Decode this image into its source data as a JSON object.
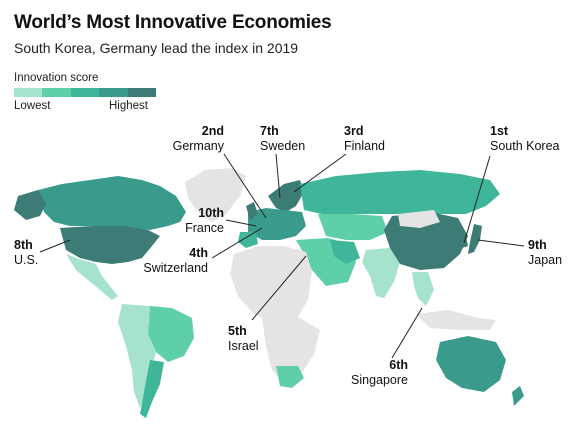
{
  "title": "World’s Most Innovative Economies",
  "subtitle": "South Korea, Germany lead the index in 2019",
  "legend": {
    "title": "Innovation score",
    "low_label": "Lowest",
    "high_label": "Highest",
    "colors": [
      "#a6e3cc",
      "#5fcfa8",
      "#3fb69a",
      "#3a9b8c",
      "#3c7b76"
    ]
  },
  "colors": {
    "no_data": "#e4e4e4",
    "leader_line": "#222222"
  },
  "rankings": [
    {
      "rank": "1st",
      "country": "South Korea"
    },
    {
      "rank": "2nd",
      "country": "Germany"
    },
    {
      "rank": "3rd",
      "country": "Finland"
    },
    {
      "rank": "4th",
      "country": "Switzerland"
    },
    {
      "rank": "5th",
      "country": "Israel"
    },
    {
      "rank": "6th",
      "country": "Singapore"
    },
    {
      "rank": "7th",
      "country": "Sweden"
    },
    {
      "rank": "8th",
      "country": "U.S."
    },
    {
      "rank": "9th",
      "country": "Japan"
    },
    {
      "rank": "10th",
      "country": "France"
    }
  ]
}
